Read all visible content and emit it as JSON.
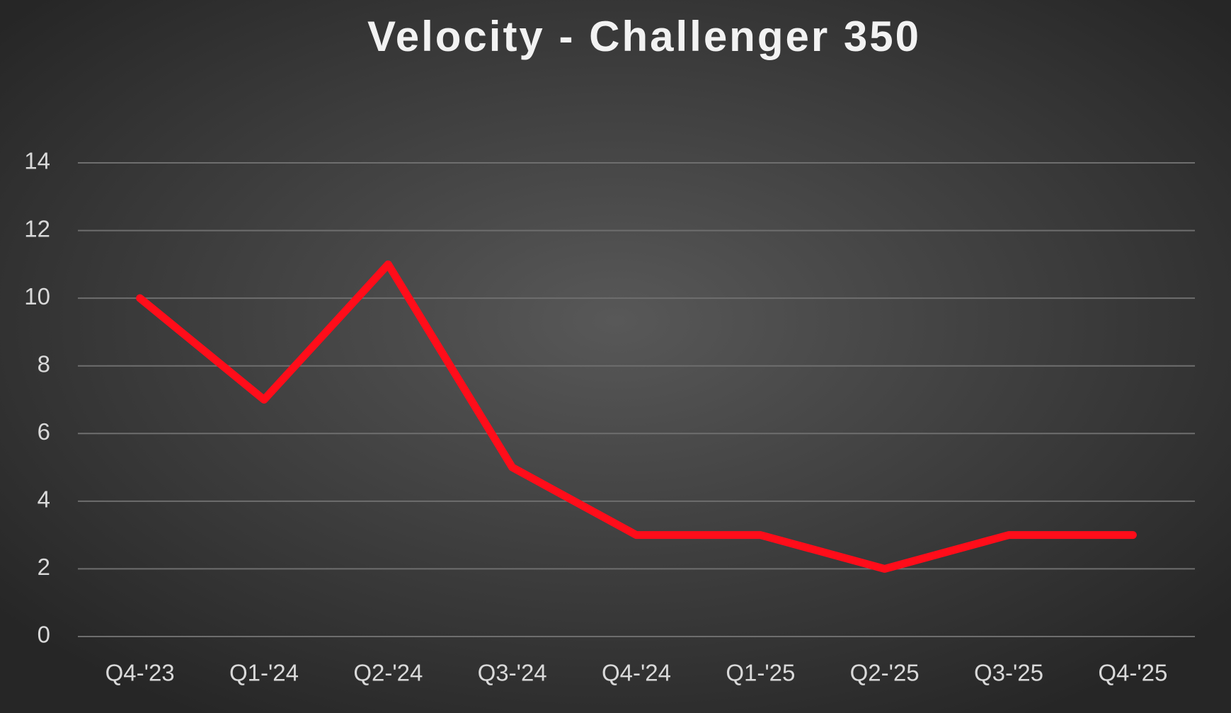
{
  "chart_data": {
    "type": "line",
    "title": "Velocity - Challenger 350",
    "categories": [
      "Q4-'23",
      "Q1-'24",
      "Q2-'24",
      "Q3-'24",
      "Q4-'24",
      "Q1-'25",
      "Q2-'25",
      "Q3-'25",
      "Q4-'25"
    ],
    "values": [
      10,
      7,
      11,
      5,
      3,
      3,
      2,
      3,
      3
    ],
    "color": "#ff0d1a",
    "ylim": [
      0,
      14
    ],
    "yticks": [
      0,
      2,
      4,
      6,
      8,
      10,
      12,
      14
    ],
    "grid": true
  }
}
